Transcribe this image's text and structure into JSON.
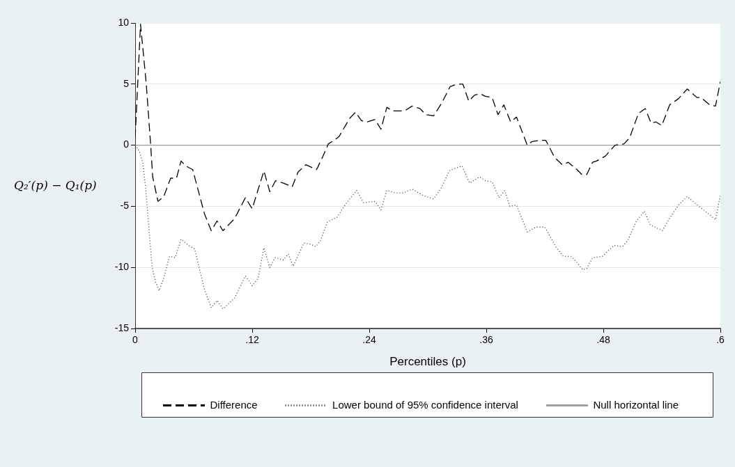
{
  "chart_data": {
    "type": "line",
    "xlabel": "Percentiles (p)",
    "ylabel": "Q₂′(p) − Q₁(p)",
    "xlim": [
      0,
      0.6
    ],
    "xticks": [
      {
        "value": 0,
        "label": "0"
      },
      {
        "value": 0.12,
        "label": ".12"
      },
      {
        "value": 0.24,
        "label": ".24"
      },
      {
        "value": 0.36,
        "label": ".36"
      },
      {
        "value": 0.48,
        "label": ".48"
      },
      {
        "value": 0.6,
        "label": ".6"
      }
    ],
    "ylim": [
      -15,
      10
    ],
    "yticks": [
      -15,
      -10,
      -5,
      0,
      5,
      10
    ],
    "grid": "y",
    "legend": "bottom",
    "marker": "none",
    "series": [
      {
        "name": "Difference",
        "color": "#000000",
        "line_style": "dashed",
        "x": [
          0,
          0.0055,
          0.0114,
          0.016,
          0.018,
          0.0234,
          0.0293,
          0.0364,
          0.0424,
          0.047,
          0.052,
          0.059,
          0.071,
          0.078,
          0.084,
          0.09,
          0.102,
          0.113,
          0.12,
          0.132,
          0.138,
          0.144,
          0.152,
          0.161,
          0.167,
          0.175,
          0.186,
          0.192,
          0.198,
          0.204,
          0.209,
          0.22,
          0.226,
          0.232,
          0.238,
          0.246,
          0.252,
          0.258,
          0.264,
          0.276,
          0.284,
          0.292,
          0.298,
          0.306,
          0.314,
          0.323,
          0.33,
          0.336,
          0.342,
          0.348,
          0.354,
          0.359,
          0.366,
          0.372,
          0.378,
          0.385,
          0.391,
          0.402,
          0.407,
          0.415,
          0.421,
          0.43,
          0.438,
          0.444,
          0.453,
          0.458,
          0.463,
          0.469,
          0.473,
          0.482,
          0.492,
          0.501,
          0.507,
          0.516,
          0.523,
          0.529,
          0.534,
          0.54,
          0.548,
          0.557,
          0.566,
          0.576,
          0.58,
          0.589,
          0.595,
          0.6
        ],
        "values": [
          0.6,
          9.9,
          5,
          -0.1,
          -2.6,
          -4.6,
          -4.2,
          -2.7,
          -2.7,
          -1.3,
          -1.7,
          -2,
          -5.6,
          -7,
          -6.2,
          -7,
          -6,
          -4.3,
          -5.2,
          -2.1,
          -3.8,
          -2.9,
          -3.1,
          -3.4,
          -2.2,
          -1.6,
          -2,
          -1,
          0.1,
          0.4,
          0.7,
          2.2,
          2.7,
          2,
          1.9,
          2.1,
          1.3,
          3.1,
          2.8,
          2.8,
          3.2,
          3,
          2.5,
          2.4,
          3.4,
          4.8,
          5,
          5,
          3.6,
          4.1,
          4.2,
          4,
          3.9,
          2.5,
          3.3,
          1.9,
          2.3,
          0,
          0.3,
          0.4,
          0.4,
          -1,
          -1.6,
          -1.4,
          -2,
          -2.4,
          -2.4,
          -1.4,
          -1.3,
          -0.9,
          0,
          0.1,
          0.6,
          2.6,
          3,
          1.8,
          1.9,
          1.6,
          3.3,
          3.8,
          4.6,
          3.9,
          3.9,
          3.3,
          3.2,
          5.2
        ]
      },
      {
        "name": "Lower bound of 95% confidence interval",
        "color": "#333333",
        "line_style": "dotted",
        "x": [
          0,
          0.0043,
          0.0079,
          0.011,
          0.0138,
          0.0174,
          0.021,
          0.0245,
          0.0293,
          0.0352,
          0.0412,
          0.047,
          0.055,
          0.061,
          0.071,
          0.078,
          0.084,
          0.09,
          0.102,
          0.113,
          0.12,
          0.126,
          0.132,
          0.138,
          0.1436,
          0.152,
          0.157,
          0.162,
          0.173,
          0.18,
          0.185,
          0.19,
          0.197,
          0.207,
          0.216,
          0.227,
          0.234,
          0.246,
          0.252,
          0.258,
          0.266,
          0.275,
          0.284,
          0.295,
          0.306,
          0.314,
          0.322,
          0.328,
          0.335,
          0.343,
          0.353,
          0.359,
          0.366,
          0.373,
          0.379,
          0.384,
          0.391,
          0.402,
          0.411,
          0.42,
          0.432,
          0.439,
          0.447,
          0.453,
          0.459,
          0.463,
          0.469,
          0.479,
          0.491,
          0.4995,
          0.505,
          0.514,
          0.522,
          0.528,
          0.5405,
          0.547,
          0.557,
          0.566,
          0.578,
          0.5876,
          0.595,
          0.6
        ],
        "values": [
          0,
          -0.5,
          -1.5,
          -3.7,
          -6.5,
          -10,
          -11.2,
          -11.9,
          -10.9,
          -9.1,
          -9.2,
          -7.7,
          -8.2,
          -8.5,
          -11.8,
          -13.3,
          -12.7,
          -13.4,
          -12.5,
          -10.7,
          -11.5,
          -10.9,
          -8.4,
          -10,
          -9.2,
          -9.4,
          -8.9,
          -9.9,
          -8,
          -8.1,
          -8.3,
          -7.8,
          -6.3,
          -5.9,
          -4.8,
          -3.7,
          -4.7,
          -4.6,
          -5.3,
          -3.7,
          -3.9,
          -3.9,
          -3.6,
          -4.1,
          -4.4,
          -3.5,
          -2.1,
          -1.9,
          -1.7,
          -3.1,
          -2.6,
          -2.9,
          -3,
          -4.3,
          -3.7,
          -5,
          -4.9,
          -7.1,
          -6.7,
          -6.7,
          -8.4,
          -9.1,
          -9.1,
          -9.6,
          -10.2,
          -10.1,
          -9.2,
          -9.1,
          -8.2,
          -8.3,
          -7.8,
          -6.2,
          -5.4,
          -6.5,
          -7,
          -6.1,
          -4.9,
          -4.2,
          -5,
          -5.6,
          -6.1,
          -4.1
        ]
      },
      {
        "name": "Null horizontal line",
        "color": "#a0a0a0",
        "line_style": "solid",
        "x": [
          0,
          0.6
        ],
        "values": [
          0,
          0
        ]
      }
    ]
  }
}
